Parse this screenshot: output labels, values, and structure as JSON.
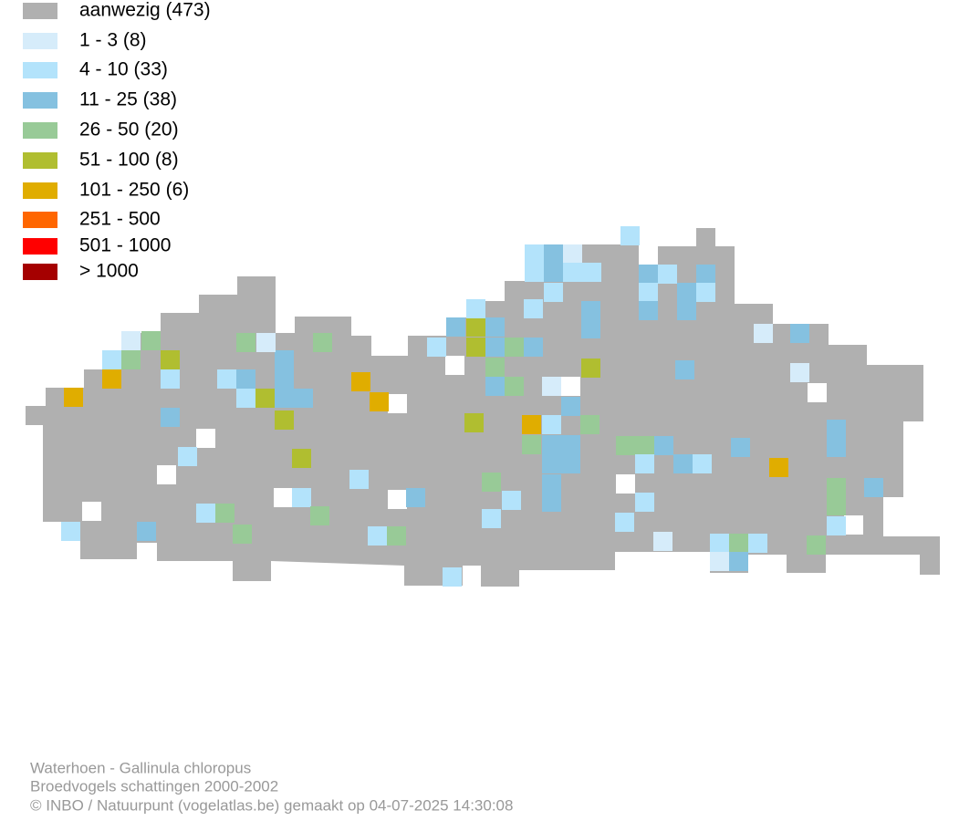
{
  "legend": [
    {
      "label": "aanwezig (473)",
      "color": "#b0b0b0"
    },
    {
      "label": "1 - 3 (8)",
      "color": "#d6ecfa"
    },
    {
      "label": "4 - 10 (33)",
      "color": "#b3e3fb"
    },
    {
      "label": "11 - 25 (38)",
      "color": "#85c1e0"
    },
    {
      "label": "26 - 50 (20)",
      "color": "#98ca97"
    },
    {
      "label": "51 - 100 (8)",
      "color": "#b0be30"
    },
    {
      "label": "101 - 250 (6)",
      "color": "#e0ad00"
    },
    {
      "label": "251 - 500",
      "color": "#ff6600"
    },
    {
      "label": "501 - 1000",
      "color": "#ff0000"
    },
    {
      "label": "> 1000",
      "color": "#a50000"
    }
  ],
  "footer": {
    "lines": [
      "Waterhoen - Gallinula chloropus",
      "Broedvogels schattingen 2000-2002",
      "© INBO / Natuurpunt (vogelatlas.be) gemaakt op 04-07-2025 14:30:08"
    ]
  }
}
